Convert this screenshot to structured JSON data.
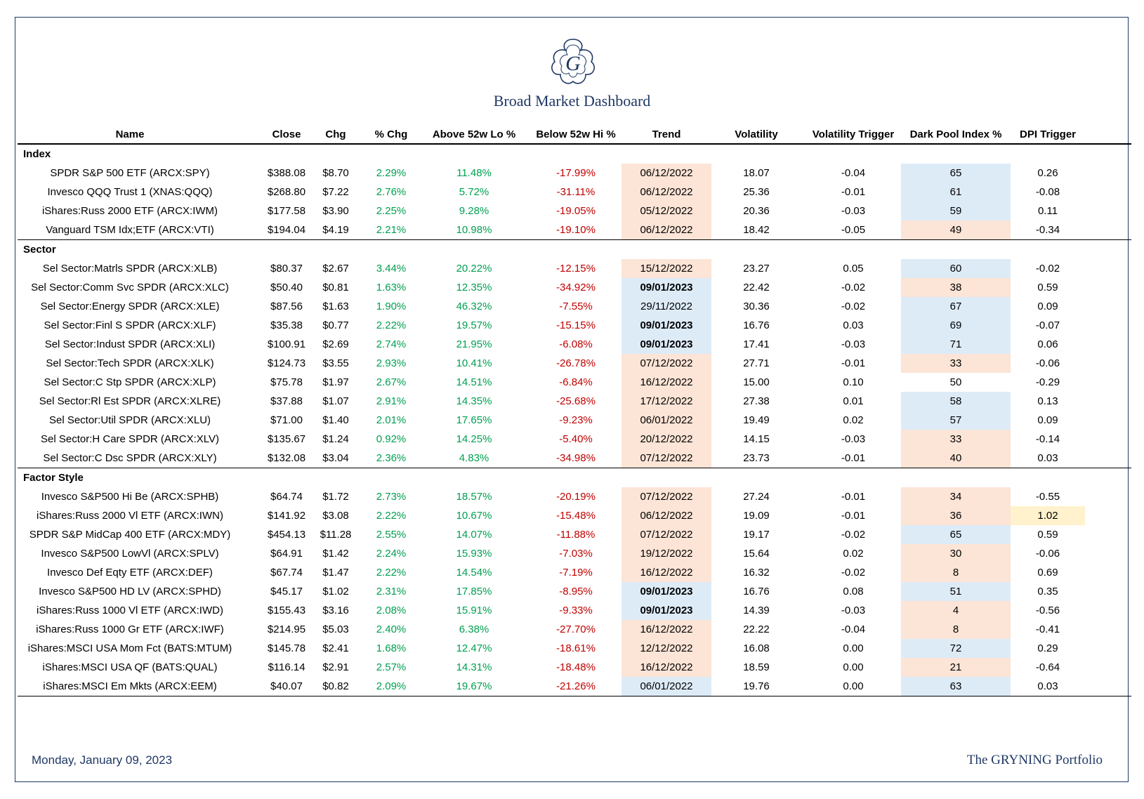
{
  "title": "Broad Market Dashboard",
  "footer": {
    "date": "Monday, January 09, 2023",
    "brand": "The GRYNING Portfolio"
  },
  "colors": {
    "navy": "#1f3864",
    "positive": "#00a050",
    "negative": "#c00000",
    "peach": "#fce4d6",
    "blue": "#ddebf7",
    "yellow": "#fff2cc"
  },
  "columns": [
    "Name",
    "Close",
    "Chg",
    "% Chg",
    "Above 52w Lo %",
    "Below 52w Hi %",
    "Trend",
    "Volatility",
    "Volatility Trigger",
    "Dark Pool Index %",
    "DPI Trigger"
  ],
  "sections": [
    {
      "label": "Index",
      "rows": [
        {
          "name": "SPDR S&P 500 ETF (ARCX:SPY)",
          "close": "$388.08",
          "chg": "$8.70",
          "pct": "2.29%",
          "lo": "11.48%",
          "hi": "-17.99%",
          "trend": "06/12/2022",
          "trend_bg": "peach",
          "trend_bold": false,
          "vol": "18.07",
          "vt": "-0.04",
          "dpi": "65",
          "dpi_bg": "blue",
          "dpit": "0.26",
          "dpit_bg": "none"
        },
        {
          "name": "Invesco QQQ Trust 1 (XNAS:QQQ)",
          "close": "$268.80",
          "chg": "$7.22",
          "pct": "2.76%",
          "lo": "5.72%",
          "hi": "-31.11%",
          "trend": "06/12/2022",
          "trend_bg": "peach",
          "trend_bold": false,
          "vol": "25.36",
          "vt": "-0.01",
          "dpi": "61",
          "dpi_bg": "blue",
          "dpit": "-0.08",
          "dpit_bg": "none"
        },
        {
          "name": "iShares:Russ 2000 ETF (ARCX:IWM)",
          "close": "$177.58",
          "chg": "$3.90",
          "pct": "2.25%",
          "lo": "9.28%",
          "hi": "-19.05%",
          "trend": "05/12/2022",
          "trend_bg": "peach",
          "trend_bold": false,
          "vol": "20.36",
          "vt": "-0.03",
          "dpi": "59",
          "dpi_bg": "blue",
          "dpit": "0.11",
          "dpit_bg": "none"
        },
        {
          "name": "Vanguard TSM Idx;ETF (ARCX:VTI)",
          "close": "$194.04",
          "chg": "$4.19",
          "pct": "2.21%",
          "lo": "10.98%",
          "hi": "-19.10%",
          "trend": "06/12/2022",
          "trend_bg": "peach",
          "trend_bold": false,
          "vol": "18.42",
          "vt": "-0.05",
          "dpi": "49",
          "dpi_bg": "peach",
          "dpit": "-0.34",
          "dpit_bg": "none"
        }
      ]
    },
    {
      "label": "Sector",
      "rows": [
        {
          "name": "Sel Sector:Matrls SPDR (ARCX:XLB)",
          "close": "$80.37",
          "chg": "$2.67",
          "pct": "3.44%",
          "lo": "20.22%",
          "hi": "-12.15%",
          "trend": "15/12/2022",
          "trend_bg": "peach",
          "trend_bold": false,
          "vol": "23.27",
          "vt": "0.05",
          "dpi": "60",
          "dpi_bg": "blue",
          "dpit": "-0.02",
          "dpit_bg": "none"
        },
        {
          "name": "Sel Sector:Comm Svc SPDR (ARCX:XLC)",
          "close": "$50.40",
          "chg": "$0.81",
          "pct": "1.63%",
          "lo": "12.35%",
          "hi": "-34.92%",
          "trend": "09/01/2023",
          "trend_bg": "blue",
          "trend_bold": true,
          "vol": "22.42",
          "vt": "-0.02",
          "dpi": "38",
          "dpi_bg": "peach",
          "dpit": "0.59",
          "dpit_bg": "none"
        },
        {
          "name": "Sel Sector:Energy SPDR (ARCX:XLE)",
          "close": "$87.56",
          "chg": "$1.63",
          "pct": "1.90%",
          "lo": "46.32%",
          "hi": "-7.55%",
          "trend": "29/11/2022",
          "trend_bg": "blue",
          "trend_bold": false,
          "vol": "30.36",
          "vt": "-0.02",
          "dpi": "67",
          "dpi_bg": "blue",
          "dpit": "0.09",
          "dpit_bg": "none"
        },
        {
          "name": "Sel Sector:Finl S SPDR (ARCX:XLF)",
          "close": "$35.38",
          "chg": "$0.77",
          "pct": "2.22%",
          "lo": "19.57%",
          "hi": "-15.15%",
          "trend": "09/01/2023",
          "trend_bg": "blue",
          "trend_bold": true,
          "vol": "16.76",
          "vt": "0.03",
          "dpi": "69",
          "dpi_bg": "blue",
          "dpit": "-0.07",
          "dpit_bg": "none"
        },
        {
          "name": "Sel Sector:Indust SPDR (ARCX:XLI)",
          "close": "$100.91",
          "chg": "$2.69",
          "pct": "2.74%",
          "lo": "21.95%",
          "hi": "-6.08%",
          "trend": "09/01/2023",
          "trend_bg": "blue",
          "trend_bold": true,
          "vol": "17.41",
          "vt": "-0.03",
          "dpi": "71",
          "dpi_bg": "blue",
          "dpit": "0.06",
          "dpit_bg": "none"
        },
        {
          "name": "Sel Sector:Tech SPDR (ARCX:XLK)",
          "close": "$124.73",
          "chg": "$3.55",
          "pct": "2.93%",
          "lo": "10.41%",
          "hi": "-26.78%",
          "trend": "07/12/2022",
          "trend_bg": "peach",
          "trend_bold": false,
          "vol": "27.71",
          "vt": "-0.01",
          "dpi": "33",
          "dpi_bg": "peach",
          "dpit": "-0.06",
          "dpit_bg": "none"
        },
        {
          "name": "Sel Sector:C Stp SPDR (ARCX:XLP)",
          "close": "$75.78",
          "chg": "$1.97",
          "pct": "2.67%",
          "lo": "14.51%",
          "hi": "-6.84%",
          "trend": "16/12/2022",
          "trend_bg": "peach",
          "trend_bold": false,
          "vol": "15.00",
          "vt": "0.10",
          "dpi": "50",
          "dpi_bg": "none",
          "dpit": "-0.29",
          "dpit_bg": "none"
        },
        {
          "name": "Sel Sector:Rl Est SPDR (ARCX:XLRE)",
          "close": "$37.88",
          "chg": "$1.07",
          "pct": "2.91%",
          "lo": "14.35%",
          "hi": "-25.68%",
          "trend": "17/12/2022",
          "trend_bg": "peach",
          "trend_bold": false,
          "vol": "27.38",
          "vt": "0.01",
          "dpi": "58",
          "dpi_bg": "blue",
          "dpit": "0.13",
          "dpit_bg": "none"
        },
        {
          "name": "Sel Sector:Util SPDR (ARCX:XLU)",
          "close": "$71.00",
          "chg": "$1.40",
          "pct": "2.01%",
          "lo": "17.65%",
          "hi": "-9.23%",
          "trend": "06/01/2022",
          "trend_bg": "peach",
          "trend_bold": false,
          "vol": "19.49",
          "vt": "0.02",
          "dpi": "57",
          "dpi_bg": "blue",
          "dpit": "0.09",
          "dpit_bg": "none"
        },
        {
          "name": "Sel Sector:H Care SPDR (ARCX:XLV)",
          "close": "$135.67",
          "chg": "$1.24",
          "pct": "0.92%",
          "lo": "14.25%",
          "hi": "-5.40%",
          "trend": "20/12/2022",
          "trend_bg": "peach",
          "trend_bold": false,
          "vol": "14.15",
          "vt": "-0.03",
          "dpi": "33",
          "dpi_bg": "peach",
          "dpit": "-0.14",
          "dpit_bg": "none"
        },
        {
          "name": "Sel Sector:C Dsc SPDR (ARCX:XLY)",
          "close": "$132.08",
          "chg": "$3.04",
          "pct": "2.36%",
          "lo": "4.83%",
          "hi": "-34.98%",
          "trend": "07/12/2022",
          "trend_bg": "peach",
          "trend_bold": false,
          "vol": "23.73",
          "vt": "-0.01",
          "dpi": "40",
          "dpi_bg": "peach",
          "dpit": "0.03",
          "dpit_bg": "none"
        }
      ]
    },
    {
      "label": "Factor Style",
      "rows": [
        {
          "name": "Invesco S&P500 Hi Be (ARCX:SPHB)",
          "close": "$64.74",
          "chg": "$1.72",
          "pct": "2.73%",
          "lo": "18.57%",
          "hi": "-20.19%",
          "trend": "07/12/2022",
          "trend_bg": "peach",
          "trend_bold": false,
          "vol": "27.24",
          "vt": "-0.01",
          "dpi": "34",
          "dpi_bg": "peach",
          "dpit": "-0.55",
          "dpit_bg": "none"
        },
        {
          "name": "iShares:Russ 2000 Vl ETF (ARCX:IWN)",
          "close": "$141.92",
          "chg": "$3.08",
          "pct": "2.22%",
          "lo": "10.67%",
          "hi": "-15.48%",
          "trend": "06/12/2022",
          "trend_bg": "peach",
          "trend_bold": false,
          "vol": "19.09",
          "vt": "-0.01",
          "dpi": "36",
          "dpi_bg": "peach",
          "dpit": "1.02",
          "dpit_bg": "yellow"
        },
        {
          "name": "SPDR S&P MidCap 400 ETF (ARCX:MDY)",
          "close": "$454.13",
          "chg": "$11.28",
          "pct": "2.55%",
          "lo": "14.07%",
          "hi": "-11.88%",
          "trend": "07/12/2022",
          "trend_bg": "peach",
          "trend_bold": false,
          "vol": "19.17",
          "vt": "-0.02",
          "dpi": "65",
          "dpi_bg": "blue",
          "dpit": "0.59",
          "dpit_bg": "none"
        },
        {
          "name": "Invesco S&P500 LowVl (ARCX:SPLV)",
          "close": "$64.91",
          "chg": "$1.42",
          "pct": "2.24%",
          "lo": "15.93%",
          "hi": "-7.03%",
          "trend": "19/12/2022",
          "trend_bg": "peach",
          "trend_bold": false,
          "vol": "15.64",
          "vt": "0.02",
          "dpi": "30",
          "dpi_bg": "peach",
          "dpit": "-0.06",
          "dpit_bg": "none"
        },
        {
          "name": "Invesco Def Eqty ETF (ARCX:DEF)",
          "close": "$67.74",
          "chg": "$1.47",
          "pct": "2.22%",
          "lo": "14.54%",
          "hi": "-7.19%",
          "trend": "16/12/2022",
          "trend_bg": "peach",
          "trend_bold": false,
          "vol": "16.32",
          "vt": "-0.02",
          "dpi": "8",
          "dpi_bg": "peach",
          "dpit": "0.69",
          "dpit_bg": "none"
        },
        {
          "name": "Invesco S&P500 HD LV (ARCX:SPHD)",
          "close": "$45.17",
          "chg": "$1.02",
          "pct": "2.31%",
          "lo": "17.85%",
          "hi": "-8.95%",
          "trend": "09/01/2023",
          "trend_bg": "blue",
          "trend_bold": true,
          "vol": "16.76",
          "vt": "0.08",
          "dpi": "51",
          "dpi_bg": "blue",
          "dpit": "0.35",
          "dpit_bg": "none"
        },
        {
          "name": "iShares:Russ 1000 Vl ETF (ARCX:IWD)",
          "close": "$155.43",
          "chg": "$3.16",
          "pct": "2.08%",
          "lo": "15.91%",
          "hi": "-9.33%",
          "trend": "09/01/2023",
          "trend_bg": "blue",
          "trend_bold": true,
          "vol": "14.39",
          "vt": "-0.03",
          "dpi": "4",
          "dpi_bg": "peach",
          "dpit": "-0.56",
          "dpit_bg": "none"
        },
        {
          "name": "iShares:Russ 1000 Gr ETF (ARCX:IWF)",
          "close": "$214.95",
          "chg": "$5.03",
          "pct": "2.40%",
          "lo": "6.38%",
          "hi": "-27.70%",
          "trend": "16/12/2022",
          "trend_bg": "peach",
          "trend_bold": false,
          "vol": "22.22",
          "vt": "-0.04",
          "dpi": "8",
          "dpi_bg": "peach",
          "dpit": "-0.41",
          "dpit_bg": "none"
        },
        {
          "name": "iShares:MSCI USA Mom Fct (BATS:MTUM)",
          "close": "$145.78",
          "chg": "$2.41",
          "pct": "1.68%",
          "lo": "12.47%",
          "hi": "-18.61%",
          "trend": "12/12/2022",
          "trend_bg": "peach",
          "trend_bold": false,
          "vol": "16.08",
          "vt": "0.00",
          "dpi": "72",
          "dpi_bg": "blue",
          "dpit": "0.29",
          "dpit_bg": "none"
        },
        {
          "name": "iShares:MSCI USA QF (BATS:QUAL)",
          "close": "$116.14",
          "chg": "$2.91",
          "pct": "2.57%",
          "lo": "14.31%",
          "hi": "-18.48%",
          "trend": "16/12/2022",
          "trend_bg": "peach",
          "trend_bold": false,
          "vol": "18.59",
          "vt": "0.00",
          "dpi": "21",
          "dpi_bg": "peach",
          "dpit": "-0.64",
          "dpit_bg": "none"
        },
        {
          "name": "iShares:MSCI Em Mkts (ARCX:EEM)",
          "close": "$40.07",
          "chg": "$0.82",
          "pct": "2.09%",
          "lo": "19.67%",
          "hi": "-21.26%",
          "trend": "06/01/2022",
          "trend_bg": "blue",
          "trend_bold": false,
          "vol": "19.76",
          "vt": "0.00",
          "dpi": "63",
          "dpi_bg": "blue",
          "dpit": "0.03",
          "dpit_bg": "none"
        }
      ]
    }
  ]
}
